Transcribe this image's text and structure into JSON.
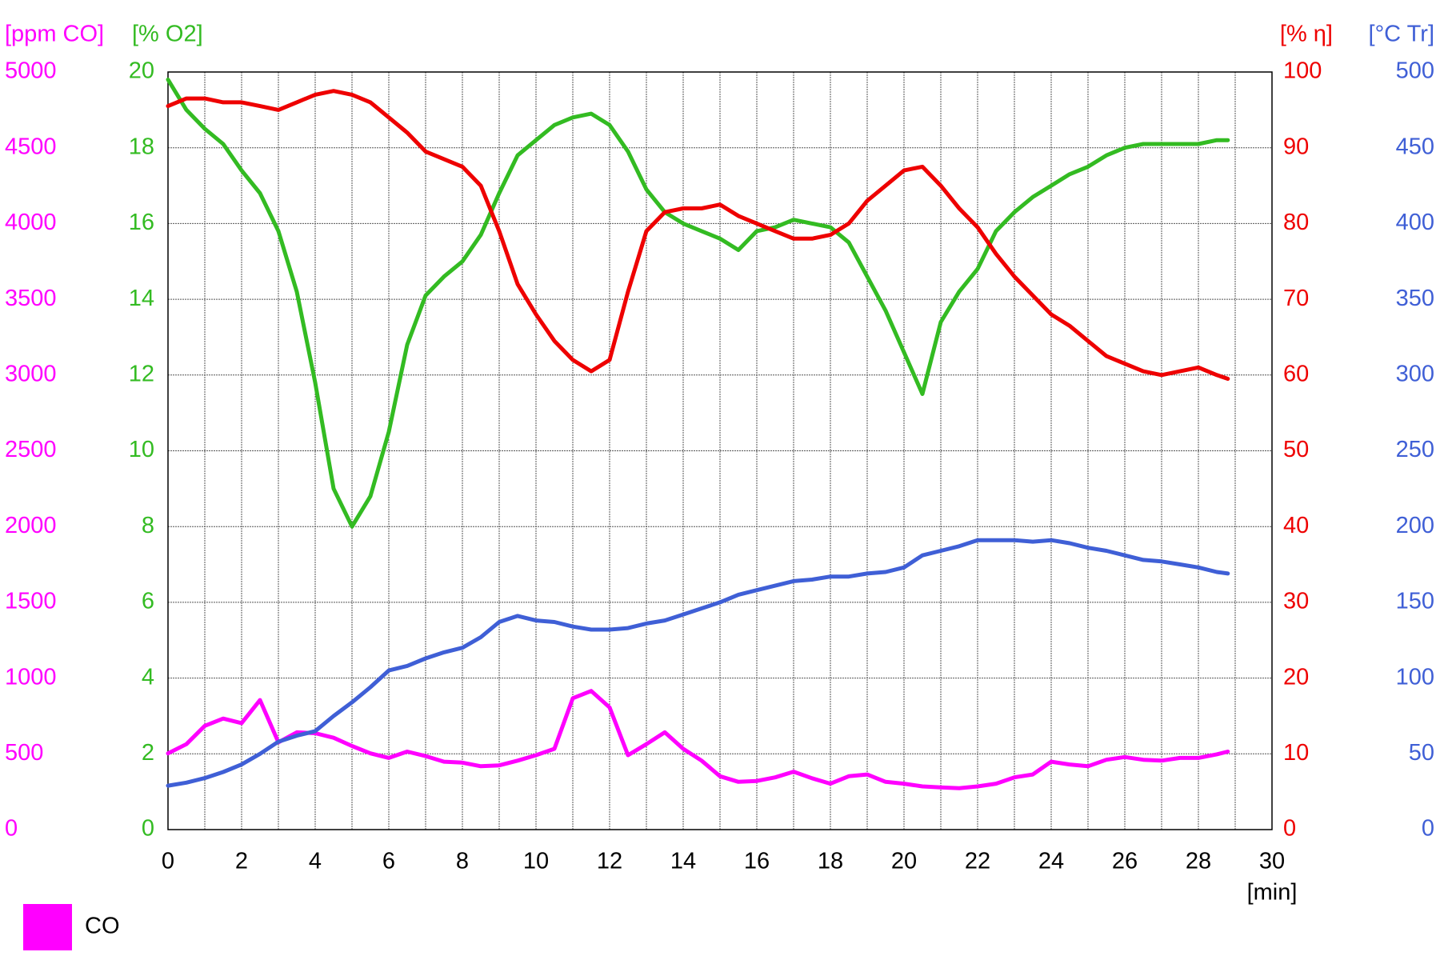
{
  "chart_data": {
    "type": "line",
    "x_label": "[min]",
    "xlim": [
      0,
      30
    ],
    "xticks": [
      0,
      2,
      4,
      6,
      8,
      10,
      12,
      14,
      16,
      18,
      20,
      22,
      24,
      26,
      28,
      30
    ],
    "grid": true,
    "legend": "bottom-left",
    "axes": [
      {
        "title": "[ppm CO]",
        "side": "left",
        "color": "#ff00ff",
        "lim": [
          0,
          5000
        ],
        "ticks": [
          0,
          500,
          1000,
          1500,
          2000,
          2500,
          3000,
          3500,
          4000,
          4500,
          5000
        ]
      },
      {
        "title": "[% O2]",
        "side": "left",
        "color": "#33bb22",
        "lim": [
          0,
          20
        ],
        "ticks": [
          0,
          2,
          4,
          6,
          8,
          10,
          12,
          14,
          16,
          18,
          20
        ]
      },
      {
        "title": "[% η]",
        "side": "right",
        "color": "#ee0000",
        "lim": [
          0,
          100
        ],
        "ticks": [
          0,
          10,
          20,
          30,
          40,
          50,
          60,
          70,
          80,
          90,
          100
        ]
      },
      {
        "title": "[°C Tr]",
        "side": "right",
        "color": "#3f5fd6",
        "lim": [
          0,
          500
        ],
        "ticks": [
          0,
          50,
          100,
          150,
          200,
          250,
          300,
          350,
          400,
          450,
          500
        ]
      }
    ],
    "x": [
      0,
      0.5,
      1,
      1.5,
      2,
      2.5,
      3,
      3.5,
      4,
      4.5,
      5,
      5.5,
      6,
      6.5,
      7,
      7.5,
      8,
      8.5,
      9,
      9.5,
      10,
      10.5,
      11,
      11.5,
      12,
      12.5,
      13,
      13.5,
      14,
      14.5,
      15,
      15.5,
      16,
      16.5,
      17,
      17.5,
      18,
      18.5,
      19,
      19.5,
      20,
      20.5,
      21,
      21.5,
      22,
      22.5,
      23,
      23.5,
      24,
      24.5,
      25,
      25.5,
      26,
      26.5,
      27,
      27.5,
      28,
      28.5,
      28.8
    ],
    "series": [
      {
        "name": "CO",
        "axis": 0,
        "color": "#ff00ff",
        "values": [
          503,
          564,
          685,
          733,
          703,
          855,
          576,
          642,
          636,
          606,
          552,
          503,
          473,
          515,
          485,
          448,
          442,
          418,
          424,
          455,
          491,
          533,
          867,
          915,
          806,
          491,
          564,
          642,
          533,
          455,
          352,
          315,
          321,
          345,
          382,
          339,
          303,
          352,
          364,
          315,
          303,
          285,
          279,
          273,
          285,
          303,
          345,
          364,
          448,
          430,
          418,
          461,
          479,
          461,
          455,
          473,
          473,
          497,
          515
        ]
      },
      {
        "axis": 1,
        "color": "#33bb22",
        "values": [
          19.8,
          19.0,
          18.5,
          18.1,
          17.4,
          16.8,
          15.8,
          14.2,
          11.8,
          9.0,
          8.0,
          8.8,
          10.5,
          12.8,
          14.1,
          14.6,
          15.0,
          15.7,
          16.8,
          17.8,
          18.2,
          18.6,
          18.8,
          18.9,
          18.6,
          17.9,
          16.9,
          16.3,
          16.0,
          15.8,
          15.6,
          15.3,
          15.8,
          15.9,
          16.1,
          16.0,
          15.9,
          15.5,
          14.6,
          13.7,
          12.6,
          11.5,
          13.4,
          14.2,
          14.8,
          15.8,
          16.3,
          16.7,
          17.0,
          17.3,
          17.5,
          17.8,
          18.0,
          18.1,
          18.1,
          18.1,
          18.1,
          18.2,
          18.2
        ]
      },
      {
        "axis": 2,
        "color": "#ee0000",
        "values": [
          95.5,
          96.5,
          96.5,
          96,
          96,
          95.5,
          95,
          96,
          97,
          97.5,
          97,
          96,
          94,
          92,
          89.5,
          88.5,
          87.5,
          85,
          79,
          72,
          68,
          64.5,
          62,
          60.5,
          62,
          71,
          79,
          81.5,
          82,
          82,
          82.5,
          81,
          80,
          79,
          78,
          78,
          78.5,
          80,
          83,
          85,
          87,
          87.5,
          85,
          82,
          79.5,
          76,
          73,
          70.5,
          68,
          66.5,
          64.5,
          62.5,
          61.5,
          60.5,
          60,
          60.5,
          61,
          60,
          59.5
        ]
      },
      {
        "axis": 3,
        "color": "#3f5fd6",
        "values": [
          29,
          31,
          34,
          38,
          43,
          50,
          58,
          62,
          65,
          75,
          84,
          94,
          105,
          108,
          113,
          117,
          120,
          127,
          137,
          141,
          138,
          137,
          134,
          132,
          132,
          133,
          136,
          138,
          142,
          146,
          150,
          155,
          158,
          161,
          164,
          165,
          167,
          167,
          169,
          170,
          173,
          181,
          184,
          187,
          191,
          191,
          191,
          190,
          191,
          189,
          186,
          184,
          181,
          178,
          177,
          175,
          173,
          170,
          169
        ]
      }
    ]
  }
}
